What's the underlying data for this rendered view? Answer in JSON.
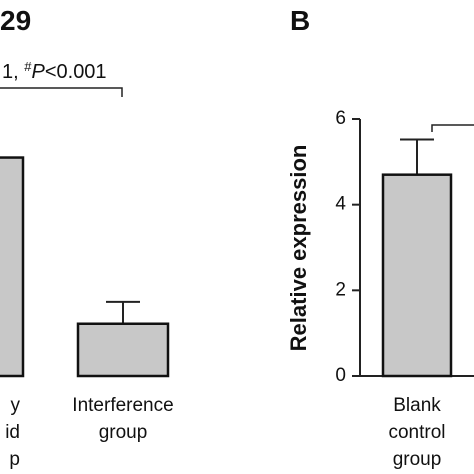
{
  "chart_data": [
    {
      "type": "bar",
      "title": "29",
      "annotation": {
        "prefix": "1, ",
        "sup": "#",
        "italic": "P",
        "rest": "<0.001"
      },
      "categories": [
        [
          "y",
          "id",
          "p"
        ],
        [
          "Interference",
          "group"
        ]
      ],
      "values": [
        5.1,
        1.22
      ],
      "errors": [
        null,
        0.51
      ],
      "color": "#c8c8c8",
      "ylim": [
        0,
        6
      ]
    },
    {
      "type": "bar",
      "title": "B",
      "ylabel": "Relative expression",
      "categories": [
        [
          "Blank",
          "control",
          "group"
        ]
      ],
      "values": [
        4.7
      ],
      "errors": [
        0.82
      ],
      "color": "#c8c8c8",
      "ylim": [
        0,
        6
      ],
      "yticks": [
        0,
        2,
        4,
        6
      ]
    }
  ]
}
